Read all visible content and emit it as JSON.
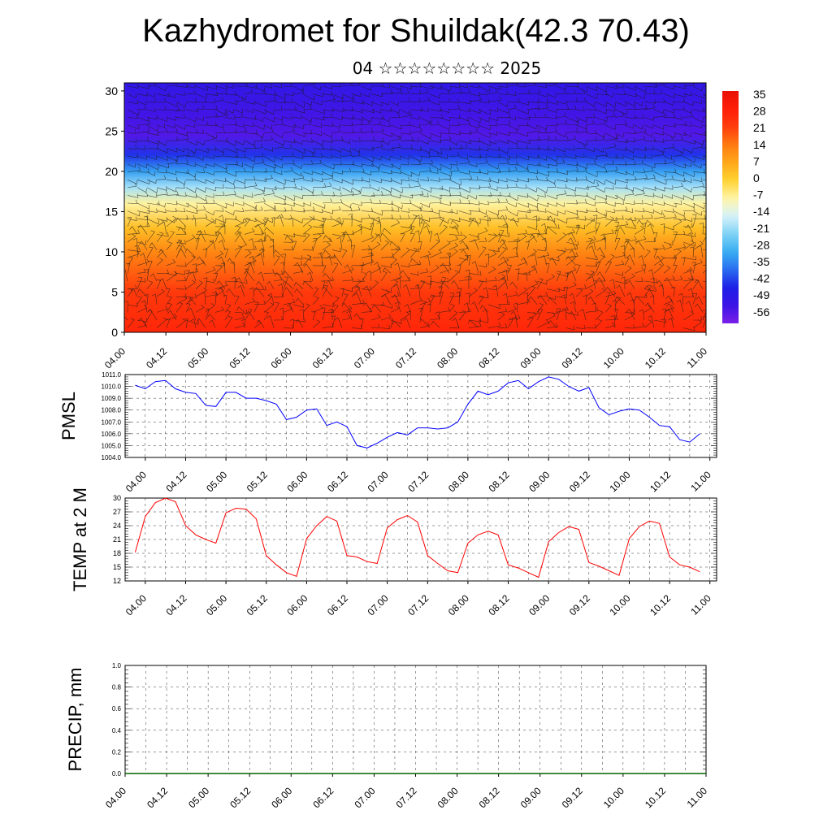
{
  "title": "Kazhydromet for Shuildak(42.3 70.43)",
  "subtitle": "04 ☆☆☆☆☆☆☆☆ 2025",
  "chart_data": [
    {
      "type": "heatmap",
      "title": "",
      "xlabel": "",
      "ylabel": "",
      "x_ticks": [
        "04.00",
        "04.12",
        "05.00",
        "05.12",
        "06.00",
        "06.12",
        "07.00",
        "07.12",
        "08.00",
        "08.12",
        "09.00",
        "09.12",
        "10.00",
        "10.12",
        "11.00"
      ],
      "y_ticks": [
        "0",
        "5",
        "10",
        "15",
        "20",
        "25",
        "30"
      ],
      "ylim": [
        0,
        31
      ],
      "colorbar_labels": [
        "35",
        "28",
        "21",
        "14",
        "7",
        "0",
        "-7",
        "-14",
        "-21",
        "-28",
        "-35",
        "-42",
        "-49",
        "-56"
      ],
      "colorbar_range": [
        -63,
        40
      ],
      "colormap": [
        "#7a1fe8",
        "#3b14e6",
        "#1e1ee6",
        "#2a6cf0",
        "#38aef2",
        "#7fd3f5",
        "#d6f2fb",
        "#fff5a8",
        "#ffd230",
        "#ffa81a",
        "#ff7a10",
        "#ff3c0c",
        "#ff1e08",
        "#e81004"
      ],
      "vertical_profile": [
        {
          "level": 0,
          "value": 30
        },
        {
          "level": 5,
          "value": 25
        },
        {
          "level": 10,
          "value": 14
        },
        {
          "level": 13,
          "value": 4
        },
        {
          "level": 16,
          "value": -7
        },
        {
          "level": 18,
          "value": -20
        },
        {
          "level": 20,
          "value": -33
        },
        {
          "level": 22,
          "value": -45
        },
        {
          "level": 24.5,
          "value": -58
        },
        {
          "level": 27,
          "value": -56
        },
        {
          "level": 31,
          "value": -52
        }
      ],
      "overlay": "wind barbs"
    },
    {
      "type": "line",
      "ylabel": "PMSL",
      "x_ticks": [
        "04.00",
        "04.12",
        "05.00",
        "05.12",
        "06.00",
        "06.12",
        "07.00",
        "07.12",
        "08.00",
        "08.12",
        "09.00",
        "09.12",
        "10.00",
        "10.12",
        "11.00"
      ],
      "y_ticks": [
        "1004.0",
        "1005.0",
        "1006.0",
        "1007.0",
        "1008.0",
        "1009.0",
        "1010.0",
        "1011.0"
      ],
      "ylim": [
        1004,
        1011
      ],
      "x_unit": "hours from 04.00",
      "series": [
        {
          "color": "#0000ff",
          "points": [
            [
              -3,
              1010.1
            ],
            [
              0,
              1009.8
            ],
            [
              3,
              1010.4
            ],
            [
              6,
              1010.5
            ],
            [
              9,
              1009.8
            ],
            [
              12,
              1009.5
            ],
            [
              15,
              1009.4
            ],
            [
              18,
              1008.4
            ],
            [
              21,
              1008.3
            ],
            [
              24,
              1009.5
            ],
            [
              27,
              1009.5
            ],
            [
              30,
              1009.0
            ],
            [
              33,
              1009.0
            ],
            [
              36,
              1008.8
            ],
            [
              39,
              1008.5
            ],
            [
              42,
              1007.2
            ],
            [
              45,
              1007.4
            ],
            [
              48,
              1008.0
            ],
            [
              51,
              1008.1
            ],
            [
              54,
              1006.7
            ],
            [
              57,
              1007.0
            ],
            [
              60,
              1006.6
            ],
            [
              63,
              1005.0
            ],
            [
              66,
              1004.8
            ],
            [
              69,
              1005.2
            ],
            [
              72,
              1005.7
            ],
            [
              75,
              1006.1
            ],
            [
              78,
              1005.9
            ],
            [
              81,
              1006.5
            ],
            [
              84,
              1006.5
            ],
            [
              87,
              1006.4
            ],
            [
              90,
              1006.5
            ],
            [
              93,
              1007.0
            ],
            [
              96,
              1008.5
            ],
            [
              99,
              1009.6
            ],
            [
              102,
              1009.3
            ],
            [
              105,
              1009.6
            ],
            [
              108,
              1010.3
            ],
            [
              111,
              1010.5
            ],
            [
              114,
              1009.8
            ],
            [
              117,
              1010.4
            ],
            [
              120,
              1010.8
            ],
            [
              123,
              1010.6
            ],
            [
              126,
              1010.0
            ],
            [
              129,
              1009.6
            ],
            [
              132,
              1009.9
            ],
            [
              135,
              1008.2
            ],
            [
              138,
              1007.6
            ],
            [
              141,
              1007.9
            ],
            [
              144,
              1008.1
            ],
            [
              147,
              1008.0
            ],
            [
              150,
              1007.4
            ],
            [
              153,
              1006.7
            ],
            [
              156,
              1006.6
            ],
            [
              159,
              1005.5
            ],
            [
              162,
              1005.3
            ],
            [
              165,
              1006.0
            ]
          ]
        }
      ]
    },
    {
      "type": "line",
      "ylabel": "TEMP at 2 M",
      "x_ticks": [
        "04.00",
        "04.12",
        "05.00",
        "05.12",
        "06.00",
        "06.12",
        "07.00",
        "07.12",
        "08.00",
        "08.12",
        "09.00",
        "09.12",
        "10.00",
        "10.12",
        "11.00"
      ],
      "y_ticks": [
        "12",
        "15",
        "18",
        "21",
        "24",
        "27",
        "30"
      ],
      "ylim": [
        12,
        30
      ],
      "x_unit": "hours from 04.00",
      "series": [
        {
          "color": "#ff0000",
          "points": [
            [
              -3,
              18.2
            ],
            [
              0,
              26.0
            ],
            [
              3,
              29.0
            ],
            [
              6,
              30.0
            ],
            [
              9,
              29.2
            ],
            [
              12,
              24.0
            ],
            [
              15,
              22.0
            ],
            [
              18,
              21.0
            ],
            [
              21,
              20.2
            ],
            [
              24,
              26.8
            ],
            [
              27,
              27.8
            ],
            [
              30,
              27.6
            ],
            [
              33,
              25.5
            ],
            [
              36,
              17.5
            ],
            [
              39,
              15.5
            ],
            [
              42,
              13.8
            ],
            [
              45,
              13.0
            ],
            [
              48,
              21.2
            ],
            [
              51,
              24.0
            ],
            [
              54,
              26.0
            ],
            [
              57,
              25.0
            ],
            [
              60,
              17.5
            ],
            [
              63,
              17.2
            ],
            [
              66,
              16.2
            ],
            [
              69,
              15.8
            ],
            [
              72,
              23.5
            ],
            [
              75,
              25.3
            ],
            [
              78,
              26.2
            ],
            [
              81,
              24.8
            ],
            [
              84,
              17.5
            ],
            [
              87,
              15.8
            ],
            [
              90,
              14.2
            ],
            [
              93,
              13.8
            ],
            [
              96,
              20.2
            ],
            [
              99,
              22.0
            ],
            [
              102,
              22.8
            ],
            [
              105,
              22.0
            ],
            [
              108,
              15.5
            ],
            [
              111,
              14.8
            ],
            [
              114,
              13.8
            ],
            [
              117,
              12.8
            ],
            [
              120,
              20.5
            ],
            [
              123,
              22.5
            ],
            [
              126,
              23.8
            ],
            [
              129,
              23.2
            ],
            [
              132,
              16.0
            ],
            [
              135,
              15.2
            ],
            [
              138,
              14.2
            ],
            [
              141,
              13.2
            ],
            [
              144,
              21.2
            ],
            [
              147,
              23.8
            ],
            [
              150,
              25.0
            ],
            [
              153,
              24.5
            ],
            [
              156,
              17.2
            ],
            [
              159,
              15.5
            ],
            [
              162,
              15.0
            ],
            [
              165,
              14.0
            ]
          ]
        }
      ]
    },
    {
      "type": "line",
      "ylabel": "PRECIP, mm",
      "x_ticks": [
        "04.00",
        "04.12",
        "05.00",
        "05.12",
        "06.00",
        "06.12",
        "07.00",
        "07.12",
        "08.00",
        "08.12",
        "09.00",
        "09.12",
        "10.00",
        "10.12",
        "11.00"
      ],
      "y_ticks": [
        "0.0",
        "0.2",
        "0.4",
        "0.6",
        "0.8",
        "1.0"
      ],
      "ylim": [
        0,
        1
      ],
      "series": [
        {
          "color": "#006400",
          "points": [
            [
              0,
              0
            ],
            [
              168,
              0
            ]
          ]
        }
      ]
    }
  ]
}
